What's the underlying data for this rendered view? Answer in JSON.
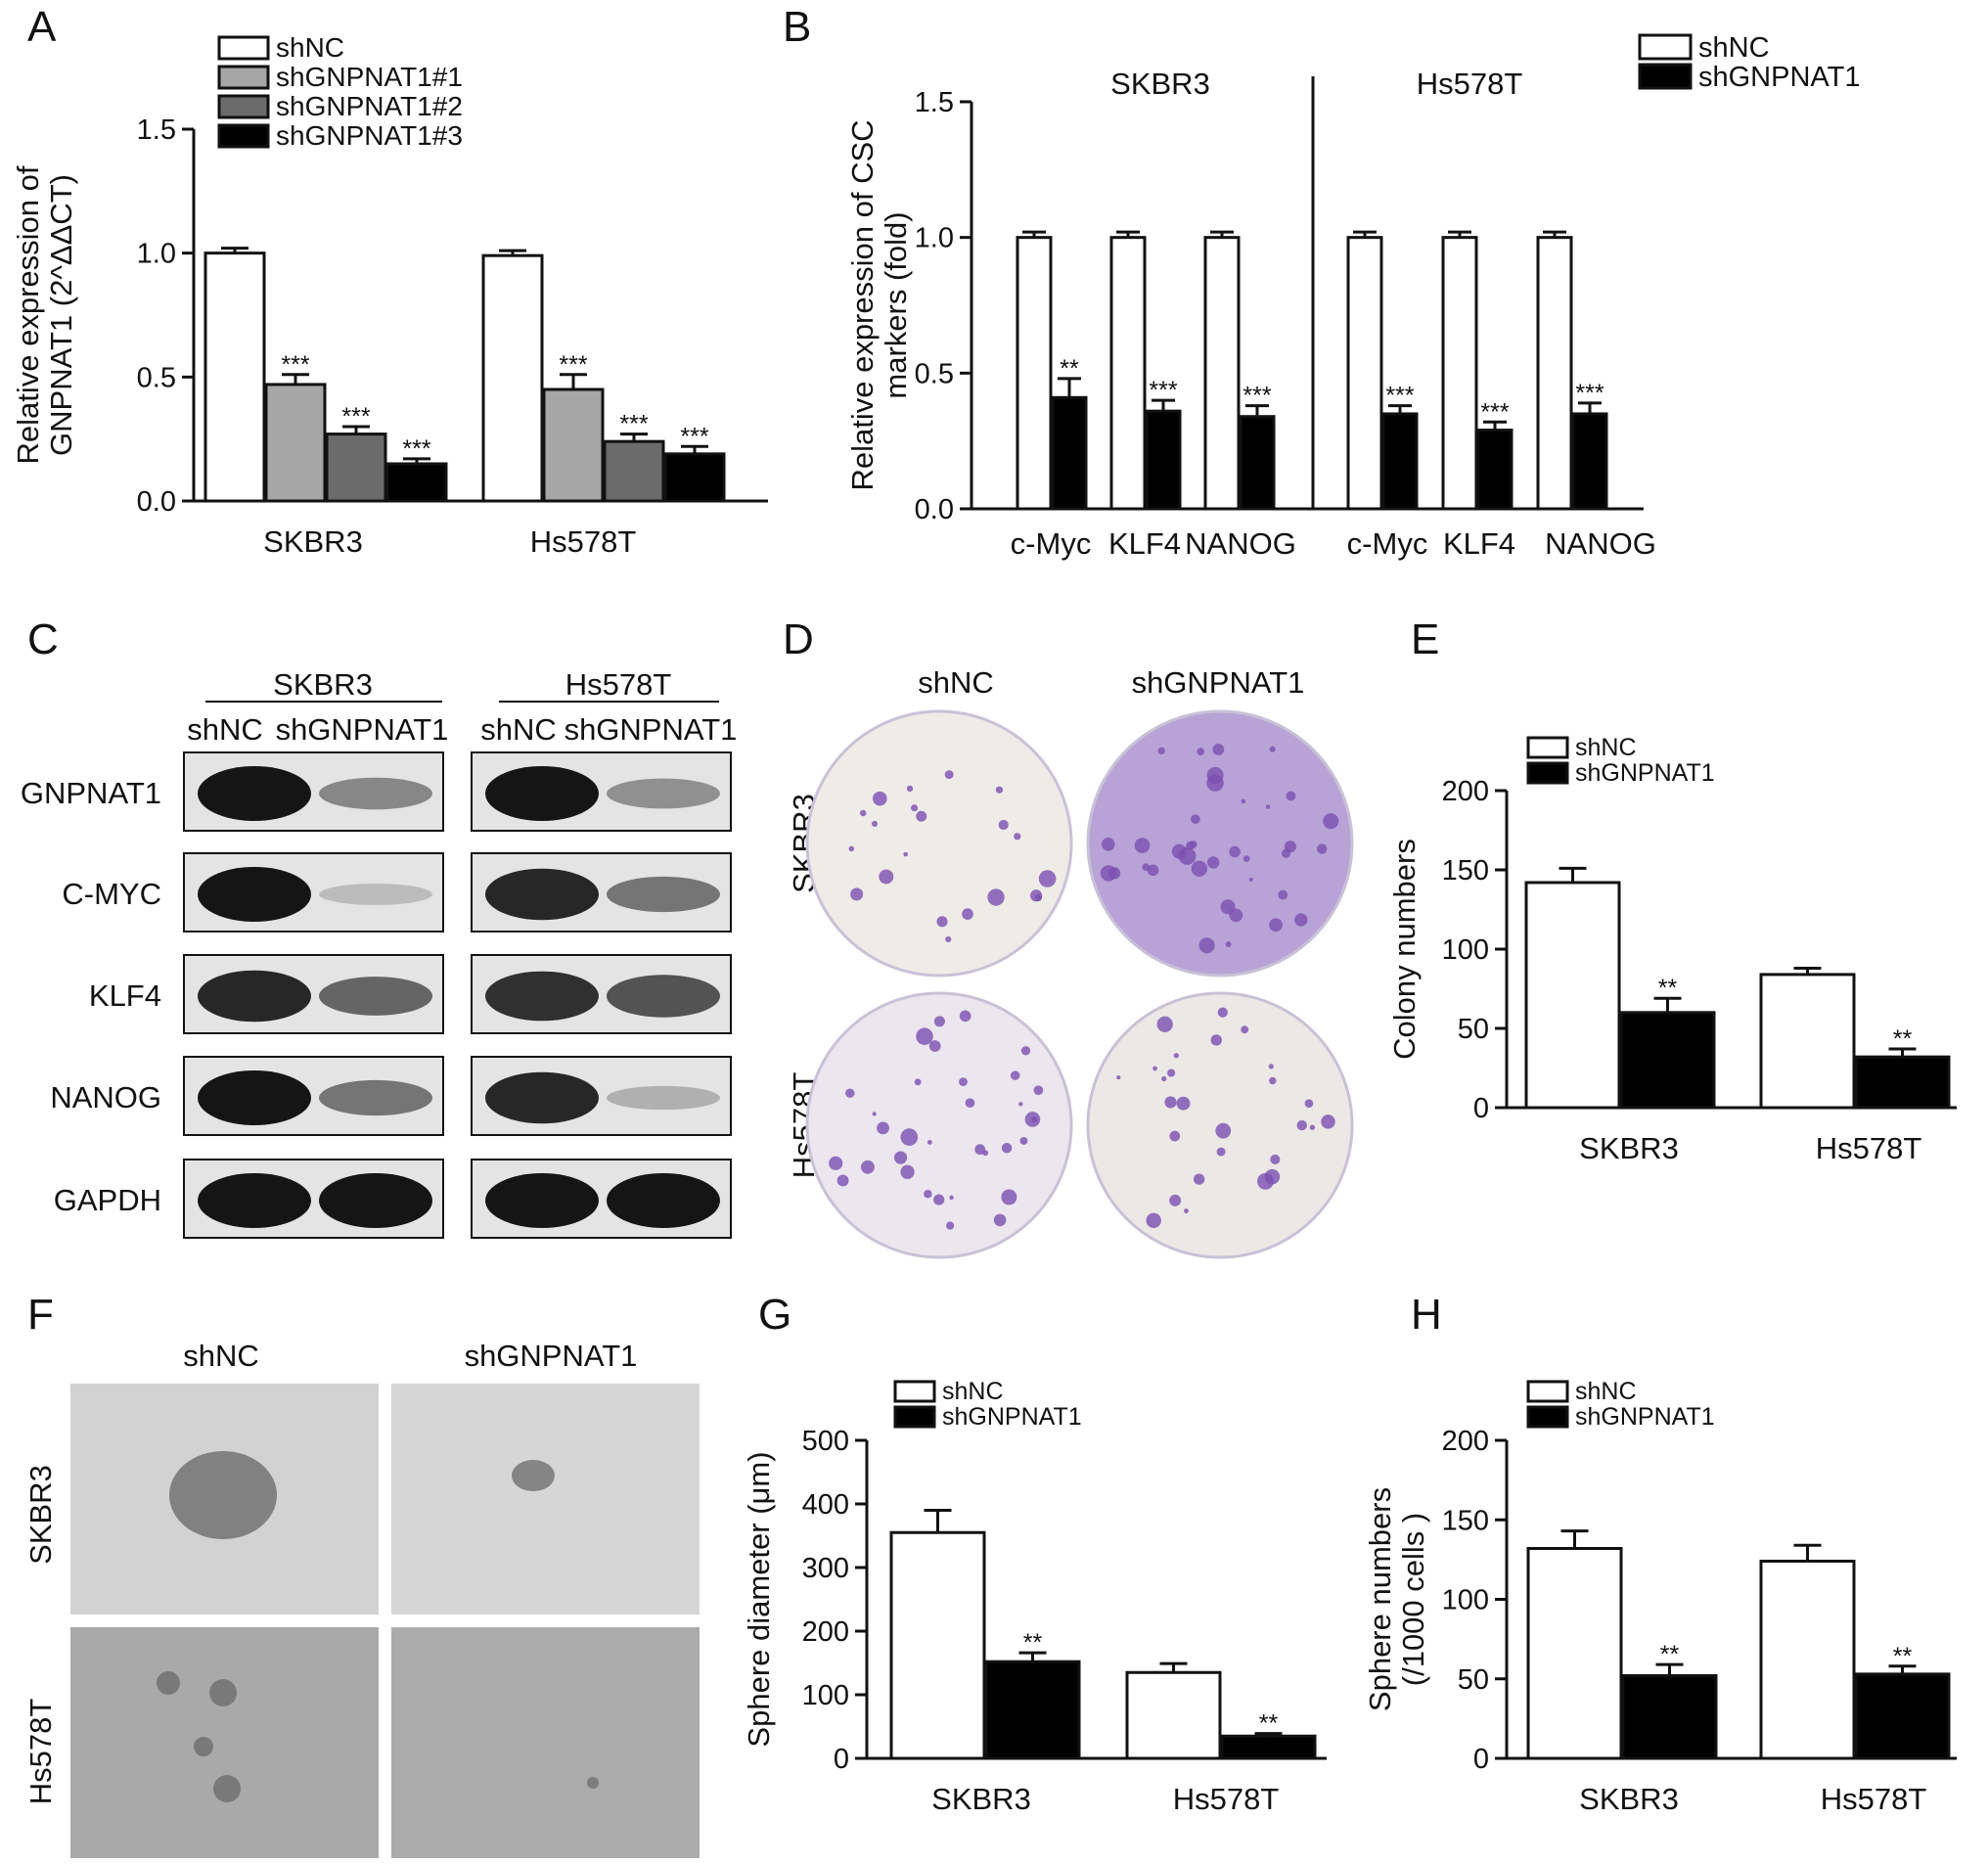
{
  "colors": {
    "shNC": "#ffffff",
    "shGNPNAT1": "#000000",
    "shGNPNAT1_1": "#a6a6a6",
    "shGNPNAT1_2": "#6b6b6b",
    "shGNPNAT1_3": "#000000",
    "crystal_violet": "#7a4fb0",
    "blot_band": "#151515"
  },
  "chart_data": [
    {
      "panel": "A",
      "type": "bar",
      "categories": [
        "SKBR3",
        "Hs578T"
      ],
      "series": [
        {
          "name": "shNC",
          "values": [
            1.0,
            0.99
          ],
          "errors": [
            0.02,
            0.02
          ],
          "sig": [
            "",
            ""
          ]
        },
        {
          "name": "shGNPNAT1#1",
          "values": [
            0.47,
            0.45
          ],
          "errors": [
            0.04,
            0.06
          ],
          "sig": [
            "***",
            "***"
          ]
        },
        {
          "name": "shGNPNAT1#2",
          "values": [
            0.27,
            0.24
          ],
          "errors": [
            0.03,
            0.03
          ],
          "sig": [
            "***",
            "***"
          ]
        },
        {
          "name": "shGNPNAT1#3",
          "values": [
            0.15,
            0.19
          ],
          "errors": [
            0.02,
            0.03
          ],
          "sig": [
            "***",
            "***"
          ]
        }
      ],
      "ylabel": [
        "Relative expression of",
        "GNPNAT1 (2^ΔΔCT)"
      ],
      "ylim": [
        0,
        1.5
      ],
      "yticks": [
        "0.0",
        "0.5",
        "1.0",
        "1.5"
      ],
      "legend": "top-right"
    },
    {
      "panel": "B",
      "type": "bar",
      "groups": [
        "SKBR3",
        "Hs578T"
      ],
      "categories": [
        "c-Myc",
        "KLF4",
        "NANOG",
        "c-Myc",
        "KLF4",
        "NANOG"
      ],
      "series": [
        {
          "name": "shNC",
          "values": [
            1.0,
            1.0,
            1.0,
            1.0,
            1.0,
            1.0
          ],
          "errors": [
            0.02,
            0.02,
            0.02,
            0.02,
            0.02,
            0.02
          ],
          "sig": [
            "",
            "",
            "",
            "",
            "",
            ""
          ]
        },
        {
          "name": "shGNPNAT1",
          "values": [
            0.41,
            0.36,
            0.34,
            0.35,
            0.29,
            0.35
          ],
          "errors": [
            0.07,
            0.04,
            0.04,
            0.03,
            0.03,
            0.04
          ],
          "sig": [
            "**",
            "***",
            "***",
            "***",
            "***",
            "***"
          ]
        }
      ],
      "ylabel": [
        "Relative expression of CSC",
        "markers (fold)"
      ],
      "ylim": [
        0,
        1.5
      ],
      "yticks": [
        "0.0",
        "0.5",
        "1.0",
        "1.5"
      ],
      "legend": "top-right"
    },
    {
      "panel": "E",
      "type": "bar",
      "categories": [
        "SKBR3",
        "Hs578T"
      ],
      "series": [
        {
          "name": "shNC",
          "values": [
            142,
            84
          ],
          "errors": [
            9,
            4
          ],
          "sig": [
            "",
            ""
          ]
        },
        {
          "name": "shGNPNAT1",
          "values": [
            60,
            32
          ],
          "errors": [
            9,
            5
          ],
          "sig": [
            "**",
            "**"
          ]
        }
      ],
      "ylabel": [
        "Colony numbers"
      ],
      "ylim": [
        0,
        200
      ],
      "yticks": [
        "0",
        "50",
        "100",
        "150",
        "200"
      ],
      "legend": "top-left"
    },
    {
      "panel": "G",
      "type": "bar",
      "categories": [
        "SKBR3",
        "Hs578T"
      ],
      "series": [
        {
          "name": "shNC",
          "values": [
            355,
            135
          ],
          "errors": [
            35,
            14
          ],
          "sig": [
            "",
            ""
          ]
        },
        {
          "name": "shGNPNAT1",
          "values": [
            152,
            35
          ],
          "errors": [
            14,
            4
          ],
          "sig": [
            "**",
            "**"
          ]
        }
      ],
      "ylabel": [
        "Sphere diameter (μm)"
      ],
      "ylim": [
        0,
        500
      ],
      "yticks": [
        "0",
        "100",
        "200",
        "300",
        "400",
        "500"
      ],
      "legend": "top-left"
    },
    {
      "panel": "H",
      "type": "bar",
      "categories": [
        "SKBR3",
        "Hs578T"
      ],
      "series": [
        {
          "name": "shNC",
          "values": [
            132,
            124
          ],
          "errors": [
            11,
            10
          ],
          "sig": [
            "",
            ""
          ]
        },
        {
          "name": "shGNPNAT1",
          "values": [
            52,
            53
          ],
          "errors": [
            7,
            5
          ],
          "sig": [
            "**",
            "**"
          ]
        }
      ],
      "ylabel": [
        "Sphere numbers",
        "(/1000 cells )"
      ],
      "ylim": [
        0,
        200
      ],
      "yticks": [
        "0",
        "50",
        "100",
        "150",
        "200"
      ],
      "legend": "top-left"
    }
  ],
  "panels": {
    "A": "A",
    "B": "B",
    "C": "C",
    "D": "D",
    "E": "E",
    "F": "F",
    "G": "G",
    "H": "H"
  },
  "western_blot": {
    "groups": [
      "SKBR3",
      "Hs578T"
    ],
    "lanes": [
      "shNC",
      "shGNPNAT1",
      "shNC",
      "shGNPNAT1"
    ],
    "proteins": [
      "GNPNAT1",
      "C-MYC",
      "KLF4",
      "NANOG",
      "GAPDH"
    ],
    "band_intensity": [
      [
        1.0,
        0.35,
        1.0,
        0.3
      ],
      [
        1.0,
        0.05,
        0.9,
        0.45
      ],
      [
        0.9,
        0.55,
        0.85,
        0.65
      ],
      [
        1.0,
        0.45,
        0.9,
        0.12
      ],
      [
        1.0,
        1.0,
        1.0,
        1.0
      ]
    ]
  },
  "colony_images": {
    "columns": [
      "shNC",
      "shGNPNAT1"
    ],
    "rows": [
      "SKBR3",
      "Hs578T"
    ]
  },
  "sphere_images": {
    "columns": [
      "shNC",
      "shGNPNAT1"
    ],
    "rows": [
      "SKBR3",
      "Hs578T"
    ]
  }
}
